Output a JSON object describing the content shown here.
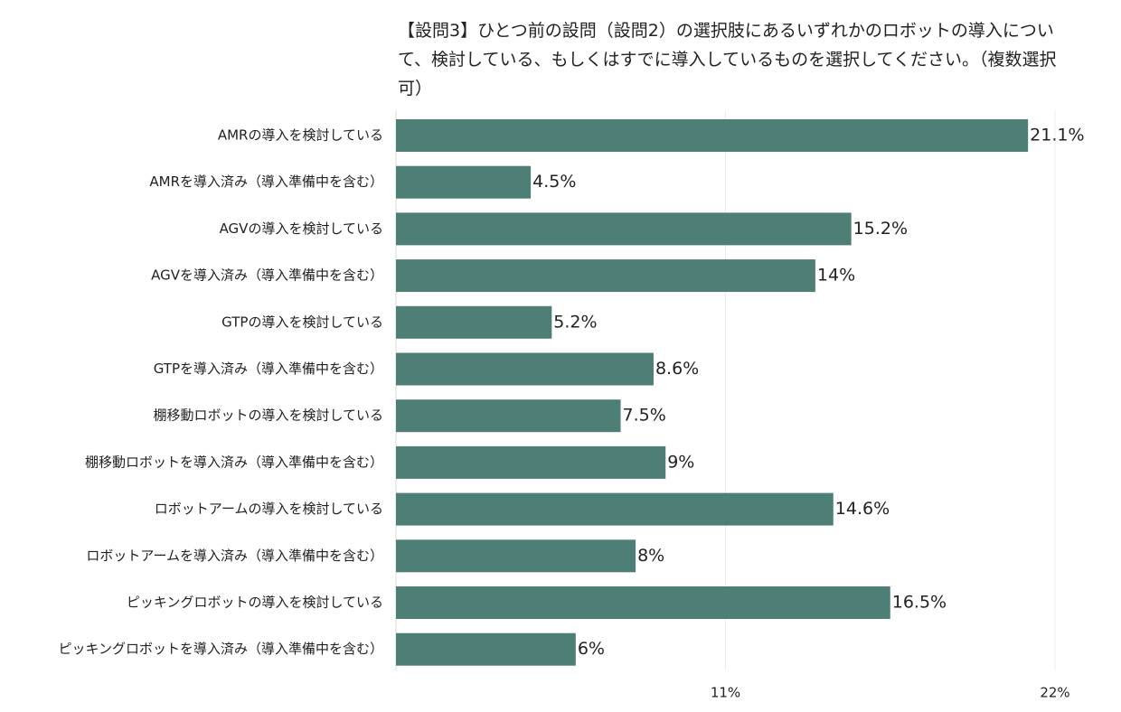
{
  "chart_data": {
    "type": "bar",
    "orientation": "horizontal",
    "title": "【設問3】ひとつ前の設問（設問2）の選択肢にあるいずれかのロボットの導入について、検討している、もしくはすでに導入しているものを選択してください。（複数選択可）",
    "categories": [
      "AMRの導入を検討している",
      "AMRを導入済み（導入準備中を含む）",
      "AGVの導入を検討している",
      "AGVを導入済み（導入準備中を含む）",
      "GTPの導入を検討している",
      "GTPを導入済み（導入準備中を含む）",
      "棚移動ロボットの導入を検討している",
      "棚移動ロボットを導入済み（導入準備中を含む）",
      "ロボットアームの導入を検討している",
      "ロボットアームを導入済み（導入準備中を含む）",
      "ピッキングロボットの導入を検討している",
      "ピッキングロボットを導入済み（導入準備中を含む）"
    ],
    "values": [
      21.1,
      4.5,
      15.2,
      14,
      5.2,
      8.6,
      7.5,
      9,
      14.6,
      8,
      16.5,
      6
    ],
    "value_labels": [
      "21.1%",
      "4.5%",
      "15.2%",
      "14%",
      "5.2%",
      "8.6%",
      "7.5%",
      "9%",
      "14.6%",
      "8%",
      "16.5%",
      "6%"
    ],
    "x_ticks": [
      {
        "value": 11,
        "label": "11%"
      },
      {
        "value": 22,
        "label": "22%"
      }
    ],
    "xlim": [
      0,
      22
    ],
    "grid": true,
    "legend": "none",
    "bar_color": "#4d7f77",
    "axis_color": "#d9d9d9"
  }
}
